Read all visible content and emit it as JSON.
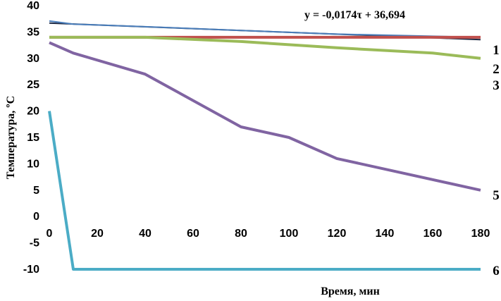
{
  "chart_data": {
    "type": "line",
    "xlabel": "Время, мин",
    "ylabel": "Температура, ºC",
    "xlim": [
      0,
      180
    ],
    "ylim": [
      -10,
      40
    ],
    "x_ticks": [
      0,
      20,
      40,
      60,
      80,
      100,
      120,
      140,
      160,
      180
    ],
    "y_ticks": [
      -10,
      -5,
      0,
      5,
      10,
      15,
      20,
      25,
      30,
      35,
      40
    ],
    "grid": false,
    "annotation": "y = -0,0174τ + 36,694",
    "series": [
      {
        "name": "1",
        "color": "#1f2a44",
        "width": 2,
        "x": [
          0,
          180
        ],
        "y": [
          36.69,
          33.56
        ]
      },
      {
        "name": "",
        "color": "#4a7ebb",
        "width": 2,
        "x": [
          0,
          10,
          40,
          80,
          120,
          180
        ],
        "y": [
          37.1,
          36.5,
          36.0,
          35.3,
          34.6,
          34.0
        ]
      },
      {
        "name": "2",
        "color": "#c0504d",
        "width": 4,
        "x": [
          0,
          20,
          40,
          80,
          120,
          180
        ],
        "y": [
          34,
          34,
          34,
          34,
          34,
          34
        ]
      },
      {
        "name": "3",
        "color": "#9bbb59",
        "width": 4,
        "x": [
          0,
          20,
          40,
          80,
          120,
          160,
          180
        ],
        "y": [
          34,
          34,
          34,
          33.2,
          32.0,
          31.0,
          30.0
        ]
      },
      {
        "name": "5",
        "color": "#8064a2",
        "width": 4,
        "x": [
          0,
          10,
          40,
          80,
          100,
          120,
          180
        ],
        "y": [
          33,
          31,
          27,
          17,
          15,
          11,
          5
        ]
      },
      {
        "name": "6",
        "color": "#4bacc6",
        "width": 4,
        "x": [
          0,
          10,
          180
        ],
        "y": [
          20,
          -10,
          -10
        ]
      }
    ]
  }
}
